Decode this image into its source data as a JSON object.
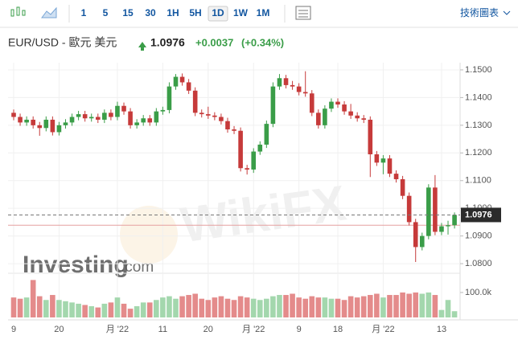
{
  "toolbar": {
    "intervals": [
      "1",
      "5",
      "15",
      "30",
      "1H",
      "5H",
      "1D",
      "1W",
      "1M"
    ],
    "active": "1D",
    "tools": "技術圖表"
  },
  "header": {
    "symbol": "EUR/USD - 歐元 美元",
    "price": "1.0976",
    "change": "+0.0037",
    "change_pct": "(+0.34%)"
  },
  "watermarks": {
    "brand": "Investing",
    "brand_suffix": ".com",
    "overlay": "WikiFX"
  },
  "chart_data": {
    "type": "candlestick",
    "categories": [
      "9",
      null,
      null,
      null,
      null,
      null,
      null,
      "20",
      null,
      null,
      null,
      null,
      null,
      null,
      null,
      null,
      "月 '22",
      null,
      null,
      null,
      null,
      null,
      null,
      "11",
      null,
      null,
      null,
      null,
      null,
      null,
      "20",
      null,
      null,
      null,
      null,
      null,
      null,
      "月 '22",
      null,
      null,
      null,
      null,
      null,
      null,
      "9",
      null,
      null,
      null,
      null,
      null,
      "18",
      null,
      null,
      null,
      null,
      null,
      null,
      "月 '22",
      null,
      null,
      null,
      null,
      null,
      null,
      null,
      null,
      "13",
      null,
      null
    ],
    "open": [
      1.1345,
      1.133,
      1.131,
      1.132,
      1.13,
      1.129,
      1.132,
      1.1275,
      1.13,
      1.131,
      1.133,
      1.134,
      1.1325,
      1.133,
      1.132,
      1.1345,
      1.133,
      1.137,
      1.135,
      1.13,
      1.131,
      1.1325,
      1.131,
      1.135,
      1.1355,
      1.144,
      1.1475,
      1.1455,
      1.1425,
      1.1345,
      1.134,
      1.1335,
      1.133,
      1.1315,
      1.1285,
      1.128,
      1.1145,
      1.114,
      1.1205,
      1.123,
      1.1305,
      1.144,
      1.147,
      1.1445,
      1.144,
      1.142,
      1.1415,
      1.1345,
      1.13,
      1.136,
      1.1385,
      1.1375,
      1.135,
      1.1335,
      1.1325,
      1.132,
      1.1195,
      1.1165,
      1.118,
      1.1125,
      1.1105,
      1.1045,
      1.095,
      1.086,
      1.09,
      1.1075,
      1.0915,
      1.0935,
      1.0939
    ],
    "high": [
      1.1357,
      1.1342,
      1.1332,
      1.1332,
      1.1312,
      1.1332,
      1.1332,
      1.1312,
      1.1322,
      1.1342,
      1.1352,
      1.1352,
      1.1342,
      1.1342,
      1.1357,
      1.1357,
      1.1385,
      1.1382,
      1.1362,
      1.1322,
      1.1337,
      1.1337,
      1.1362,
      1.1367,
      1.1455,
      1.1485,
      1.1487,
      1.1467,
      1.1437,
      1.1357,
      1.1367,
      1.1347,
      1.1342,
      1.1327,
      1.1297,
      1.1292,
      1.1157,
      1.1217,
      1.1242,
      1.1317,
      1.1455,
      1.1485,
      1.1482,
      1.146,
      1.1452,
      1.1495,
      1.1427,
      1.1357,
      1.1372,
      1.1397,
      1.1397,
      1.1387,
      1.1377,
      1.1347,
      1.1337,
      1.1332,
      1.1207,
      1.1192,
      1.1192,
      1.1137,
      1.1117,
      1.1057,
      1.0962,
      1.0912,
      1.1087,
      1.112,
      1.0947,
      1.0955,
      1.0985
    ],
    "low": [
      1.1318,
      1.1298,
      1.1298,
      1.1288,
      1.1262,
      1.1278,
      1.1263,
      1.1263,
      1.1288,
      1.1298,
      1.1318,
      1.1313,
      1.1313,
      1.1308,
      1.1308,
      1.1318,
      1.1318,
      1.1338,
      1.1288,
      1.1288,
      1.1298,
      1.1298,
      1.1298,
      1.1338,
      1.1343,
      1.1428,
      1.1443,
      1.1413,
      1.1333,
      1.1328,
      1.1323,
      1.1318,
      1.1303,
      1.1273,
      1.1268,
      1.1133,
      1.1122,
      1.1128,
      1.1193,
      1.1218,
      1.1293,
      1.1428,
      1.1433,
      1.1428,
      1.1408,
      1.1403,
      1.1333,
      1.1288,
      1.1288,
      1.1348,
      1.1363,
      1.1338,
      1.1323,
      1.1313,
      1.1308,
      1.1113,
      1.1153,
      1.1123,
      1.1113,
      1.1093,
      1.1033,
      1.0938,
      1.0806,
      1.0848,
      1.0888,
      1.0903,
      1.0903,
      1.0905,
      1.0927
    ],
    "close": [
      1.133,
      1.131,
      1.132,
      1.13,
      1.129,
      1.132,
      1.1275,
      1.13,
      1.131,
      1.133,
      1.134,
      1.1325,
      1.133,
      1.132,
      1.1345,
      1.133,
      1.137,
      1.135,
      1.13,
      1.131,
      1.1325,
      1.131,
      1.135,
      1.1355,
      1.144,
      1.1475,
      1.1455,
      1.1425,
      1.1345,
      1.134,
      1.1335,
      1.133,
      1.1315,
      1.1285,
      1.128,
      1.1145,
      1.114,
      1.1205,
      1.123,
      1.1305,
      1.144,
      1.147,
      1.1445,
      1.144,
      1.142,
      1.1415,
      1.1345,
      1.13,
      1.136,
      1.1385,
      1.1375,
      1.135,
      1.1335,
      1.1325,
      1.132,
      1.1195,
      1.1165,
      1.118,
      1.1125,
      1.1105,
      1.1045,
      1.095,
      1.086,
      1.09,
      1.1075,
      1.0915,
      1.0935,
      1.0939,
      1.0976
    ],
    "volume": [
      80000,
      75000,
      80000,
      150000,
      85000,
      70000,
      90000,
      70000,
      65000,
      60000,
      55000,
      50000,
      45000,
      40000,
      55000,
      60000,
      80000,
      55000,
      35000,
      45000,
      60000,
      60000,
      70000,
      80000,
      85000,
      75000,
      85000,
      90000,
      95000,
      75000,
      70000,
      80000,
      85000,
      75000,
      70000,
      85000,
      80000,
      75000,
      70000,
      75000,
      85000,
      90000,
      90000,
      95000,
      80000,
      75000,
      85000,
      80000,
      80000,
      75000,
      75000,
      70000,
      85000,
      80000,
      85000,
      90000,
      95000,
      80000,
      90000,
      90000,
      100000,
      95000,
      100000,
      95000,
      100000,
      90000,
      30000,
      70000,
      25000
    ],
    "up_color": "#3a9d48",
    "down_color": "#c63a3a",
    "volume_up_color": "#a3d7ad",
    "volume_down_color": "#e48b8b",
    "ylim": [
      1.0777,
      1.1526
    ],
    "yticks": [
      {
        "value": 1.15,
        "label": "1.1500"
      },
      {
        "value": 1.14,
        "label": "1.1400"
      },
      {
        "value": 1.13,
        "label": "1.1300"
      },
      {
        "value": 1.12,
        "label": "1.1200"
      },
      {
        "value": 1.11,
        "label": "1.1100"
      },
      {
        "value": 1.1,
        "label": "1.1000"
      },
      {
        "value": 1.09,
        "label": "1.0900"
      },
      {
        "value": 1.08,
        "label": "1.0800"
      }
    ],
    "volume_ylim": [
      0,
      161000
    ],
    "volume_yticks": [
      {
        "value": 100000,
        "label": "100.0k"
      }
    ],
    "last_price": 1.0976,
    "last_price_label": "1.0976",
    "reference_line": 1.0939,
    "grid": true
  }
}
